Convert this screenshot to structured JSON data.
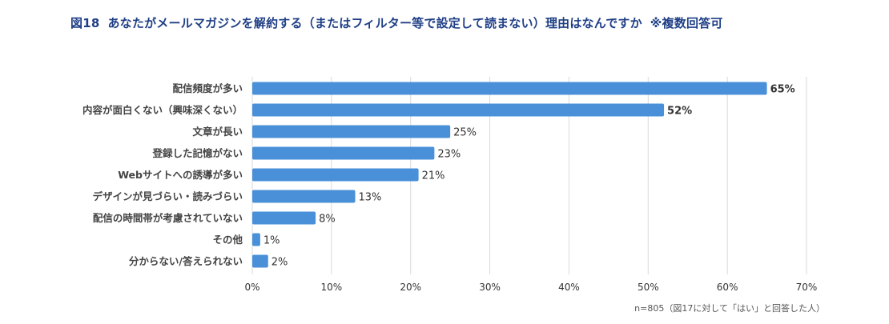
{
  "figure": {
    "number": "図18",
    "title": "あなたがメールマガジンを解約する（またはフィルター等で設定して読まない）理由はなんですか",
    "note": "※複数回答可"
  },
  "footnote": "n=805（図17に対して「はい」と回答した人）",
  "colors": {
    "bar": "#4a90d9",
    "title": "#1f3f86",
    "grid": "#d9d9d9",
    "text": "#333333"
  },
  "chart_data": {
    "type": "bar",
    "orientation": "horizontal",
    "categories": [
      "配信頻度が多い",
      "内容が面白くない（興味深くない）",
      "文章が長い",
      "登録した記憶がない",
      "Webサイトへの誘導が多い",
      "デザインが見づらい・読みづらい",
      "配信の時間帯が考慮されていない",
      "その他",
      "分からない/答えられない"
    ],
    "values": [
      65,
      52,
      25,
      23,
      21,
      13,
      8,
      1,
      2
    ],
    "value_labels": [
      "65%",
      "52%",
      "25%",
      "23%",
      "21%",
      "13%",
      "8%",
      "1%",
      "2%"
    ],
    "bold_labels": [
      true,
      true,
      false,
      false,
      false,
      false,
      false,
      false,
      false
    ],
    "xlim": [
      0,
      70
    ],
    "xticks": [
      0,
      10,
      20,
      30,
      40,
      50,
      60,
      70
    ],
    "xtick_labels": [
      "0%",
      "10%",
      "20%",
      "30%",
      "40%",
      "50%",
      "60%",
      "70%"
    ],
    "grid": true,
    "legend": "none"
  }
}
